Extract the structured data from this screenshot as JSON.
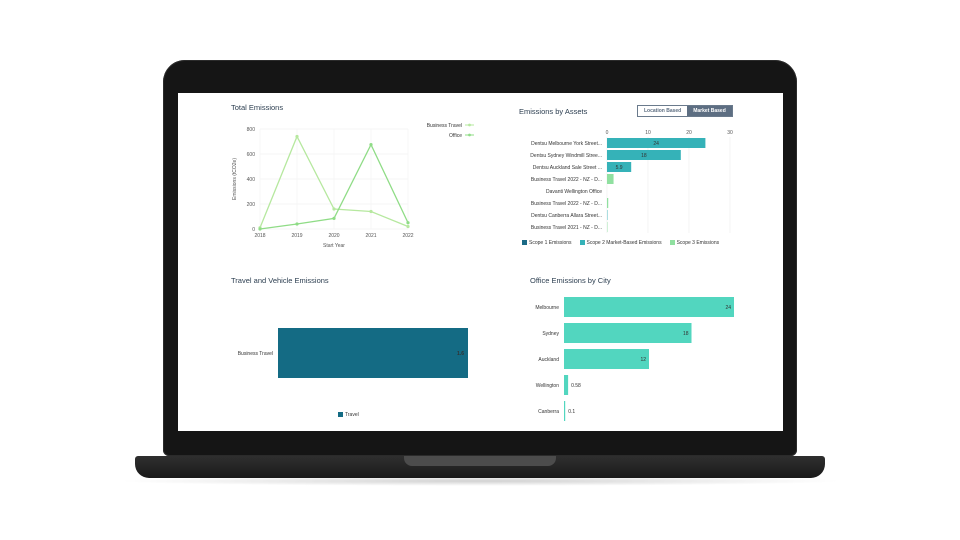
{
  "colors": {
    "business_travel_line": "#b6e89f",
    "office_line": "#8fdc86",
    "scope1": "#1b6a86",
    "scope2": "#35b2b8",
    "scope3": "#90e0a0",
    "travel_bar": "#146b84",
    "city_bar": "#52d6bf"
  },
  "total_emissions": {
    "title": "Total Emissions",
    "chart_data": {
      "type": "line",
      "title": "Total Emissions",
      "xlabel": "Start Year",
      "ylabel": "Emissions (tCO2e)",
      "x": [
        "2018",
        "2019",
        "2020",
        "2021",
        "2022"
      ],
      "ylim": [
        0,
        800
      ],
      "yticks": [
        "800",
        "600",
        "400",
        "200",
        "0"
      ],
      "series": [
        {
          "name": "Business Travel",
          "values": [
            10,
            740,
            160,
            140,
            20
          ]
        },
        {
          "name": "Office",
          "values": [
            0,
            40,
            85,
            675,
            50
          ]
        }
      ],
      "legend": "top-right",
      "grid": true
    }
  },
  "emissions_by_assets": {
    "title": "Emissions by Assets",
    "toggle": {
      "location": "Location Based",
      "market": "Market Based"
    },
    "chart_data": {
      "type": "bar",
      "orientation": "horizontal",
      "stacked": true,
      "xlim": [
        0,
        30
      ],
      "xticks": [
        "0",
        "10",
        "20",
        "30"
      ],
      "categories": [
        "Dentsu Melbourne York Street...",
        "Dentsu Sydney Windmill Stree...",
        "Dentsu Auckland Sale Street ...",
        "Business Travel 2022 - NZ - D...",
        "Davanti Wellington Office",
        "Business Travel 2022 - NZ - D...",
        "Dentsu Canberra Allara Street...",
        "Business Travel 2021 - NZ - D..."
      ],
      "series": [
        {
          "name": "Scope 1 Emissions",
          "values": [
            0,
            0,
            0,
            0,
            0,
            0,
            0,
            0
          ]
        },
        {
          "name": "Scope 2 Market-Based Emissions",
          "values": [
            24,
            18,
            5.9,
            0,
            0,
            0,
            0.1,
            0
          ]
        },
        {
          "name": "Scope 3 Emissions",
          "values": [
            0,
            0,
            0,
            1.6,
            0,
            0.3,
            0,
            0.1
          ]
        }
      ],
      "data_labels": [
        "24",
        "18",
        "5.9",
        "",
        "",
        "",
        "",
        ""
      ],
      "legend": "bottom"
    }
  },
  "travel_vehicle": {
    "title": "Travel and Vehicle Emissions",
    "chart_data": {
      "type": "bar",
      "orientation": "horizontal",
      "categories": [
        "Business Travel"
      ],
      "series": [
        {
          "name": "Travel",
          "values": [
            1.6
          ]
        }
      ],
      "data_labels": [
        "1.6"
      ],
      "legend": "bottom"
    }
  },
  "office_by_city": {
    "title": "Office Emissions by City",
    "chart_data": {
      "type": "bar",
      "orientation": "horizontal",
      "categories": [
        "Melbourne",
        "Sydney",
        "Auckland",
        "Wellington",
        "Canberra"
      ],
      "values": [
        24,
        18,
        12,
        0.58,
        0.1
      ],
      "data_labels": [
        "24",
        "18",
        "12",
        "0.58",
        "0.1"
      ]
    }
  }
}
